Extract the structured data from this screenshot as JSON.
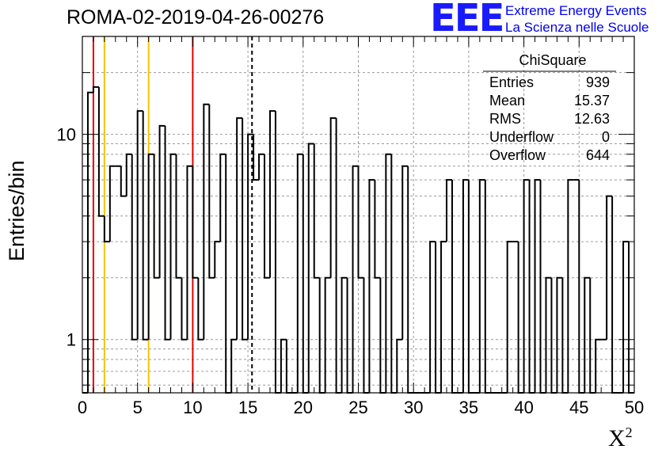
{
  "header": {
    "title": "ROMA-02-2019-04-26-00276"
  },
  "logo": {
    "mark": "EEE",
    "line1": "Extreme Energy Events",
    "line2": "La Scienza nelle Scuole"
  },
  "stats_box": {
    "title": "ChiSquare",
    "rows": [
      {
        "label": "Entries",
        "value": "939"
      },
      {
        "label": "Mean",
        "value": "15.37"
      },
      {
        "label": "RMS",
        "value": "12.63"
      },
      {
        "label": "Underflow",
        "value": "0"
      },
      {
        "label": "Overflow",
        "value": "644"
      }
    ]
  },
  "chart_data": {
    "type": "bar",
    "style": "step-histogram",
    "xlabel": "X",
    "xlabel_superscript": "2",
    "ylabel": "Entries/bin",
    "xlim": [
      0,
      50
    ],
    "ylim": [
      0.55,
      30
    ],
    "yscale": "log",
    "grid": true,
    "bin_width": 0.5,
    "xticks": [
      0,
      5,
      10,
      15,
      20,
      25,
      30,
      35,
      40,
      45,
      50
    ],
    "yticks": [
      {
        "value": 1,
        "label": "1"
      },
      {
        "value": 10,
        "label": "10"
      }
    ],
    "counts": [
      0,
      16,
      17,
      4,
      3,
      7,
      7,
      5,
      8,
      1,
      13,
      1,
      8,
      2,
      11,
      1,
      8,
      2,
      1,
      7,
      2,
      1,
      14,
      2,
      3,
      8,
      0,
      1,
      12,
      1,
      10,
      6,
      8,
      2,
      13,
      0,
      1,
      0,
      0,
      8,
      0,
      9,
      2,
      0,
      2,
      12,
      0,
      2,
      0,
      7,
      2,
      0,
      6,
      2,
      0,
      8,
      0,
      1,
      7,
      0,
      0,
      0,
      0,
      3,
      0,
      3,
      6,
      0,
      0,
      6,
      0,
      0,
      6,
      0,
      0,
      0,
      0,
      3,
      3,
      0,
      6,
      0,
      6,
      0,
      2,
      0,
      2,
      0,
      6,
      6,
      0,
      2,
      0,
      1,
      1,
      5,
      0,
      0,
      3,
      0
    ],
    "vertical_lines": [
      {
        "x": 1,
        "color": "#e00000",
        "style": "solid"
      },
      {
        "x": 2,
        "color": "#f5c400",
        "style": "solid"
      },
      {
        "x": 6,
        "color": "#f5c400",
        "style": "solid"
      },
      {
        "x": 10,
        "color": "#e00000",
        "style": "solid"
      },
      {
        "x": 15.37,
        "color": "#000000",
        "style": "dashed"
      }
    ]
  }
}
